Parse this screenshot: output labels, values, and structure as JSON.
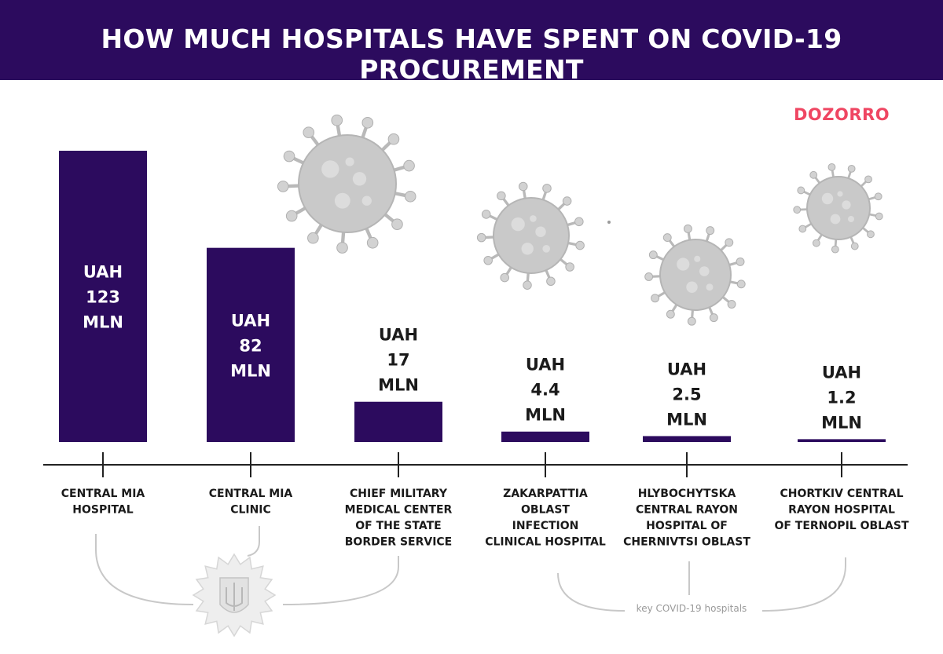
{
  "header": {
    "title": "HOW MUCH HOSPITALS HAVE SPENT ON COVID-19 PROCUREMENT"
  },
  "logo": {
    "text": "DOZORRO"
  },
  "colors": {
    "bar": "#2c0b5e",
    "header": "#2c0b5e",
    "logo": "#ef4662",
    "virus": "#c9c9c9",
    "bracket": "#c8c8c8"
  },
  "chart_data": {
    "type": "bar",
    "title": "HOW MUCH HOSPITALS HAVE SPENT ON COVID-19 PROCUREMENT",
    "categories": [
      "CENTRAL MIA HOSPITAL",
      "CENTRAL MIA CLINIC",
      "CHIEF MILITARY MEDICAL CENTER OF THE STATE BORDER SERVICE",
      "ZAKARPATTIA OBLAST INFECTION CLINICAL HOSPITAL",
      "HLYBOCHYTSKA CENTRAL RAYON HOSPITAL OF CHERNIVTSI OBLAST",
      "CHORTKIV CENTRAL RAYON HOSPITAL OF TERNOPIL OBLAST"
    ],
    "category_lines": [
      [
        "CENTRAL MIA",
        "HOSPITAL"
      ],
      [
        "CENTRAL MIA",
        "CLINIC"
      ],
      [
        "CHIEF MILITARY",
        "MEDICAL CENTER",
        "OF THE STATE",
        "BORDER SERVICE"
      ],
      [
        "ZAKARPATTIA",
        "OBLAST",
        "INFECTION",
        "CLINICAL HOSPITAL"
      ],
      [
        "HLYBOCHYTSKA",
        "CENTRAL RAYON",
        "HOSPITAL OF",
        "CHERNIVTSI OBLAST"
      ],
      [
        "CHORTKIV CENTRAL",
        "RAYON HOSPITAL",
        "OF TERNOPIL OBLAST"
      ]
    ],
    "values": [
      123,
      82,
      17,
      4.4,
      2.5,
      1.2
    ],
    "value_labels": [
      [
        "UAH",
        "123",
        "MLN"
      ],
      [
        "UAH",
        "82",
        "MLN"
      ],
      [
        "UAH",
        "17",
        "MLN"
      ],
      [
        "UAH",
        "4.4",
        "MLN"
      ],
      [
        "UAH",
        "2.5",
        "MLN"
      ],
      [
        "UAH",
        "1.2",
        "MLN"
      ]
    ],
    "unit": "UAH MLN",
    "grid": false,
    "legend": "none",
    "annotations": [
      "key COVID-19 hospitals"
    ]
  }
}
